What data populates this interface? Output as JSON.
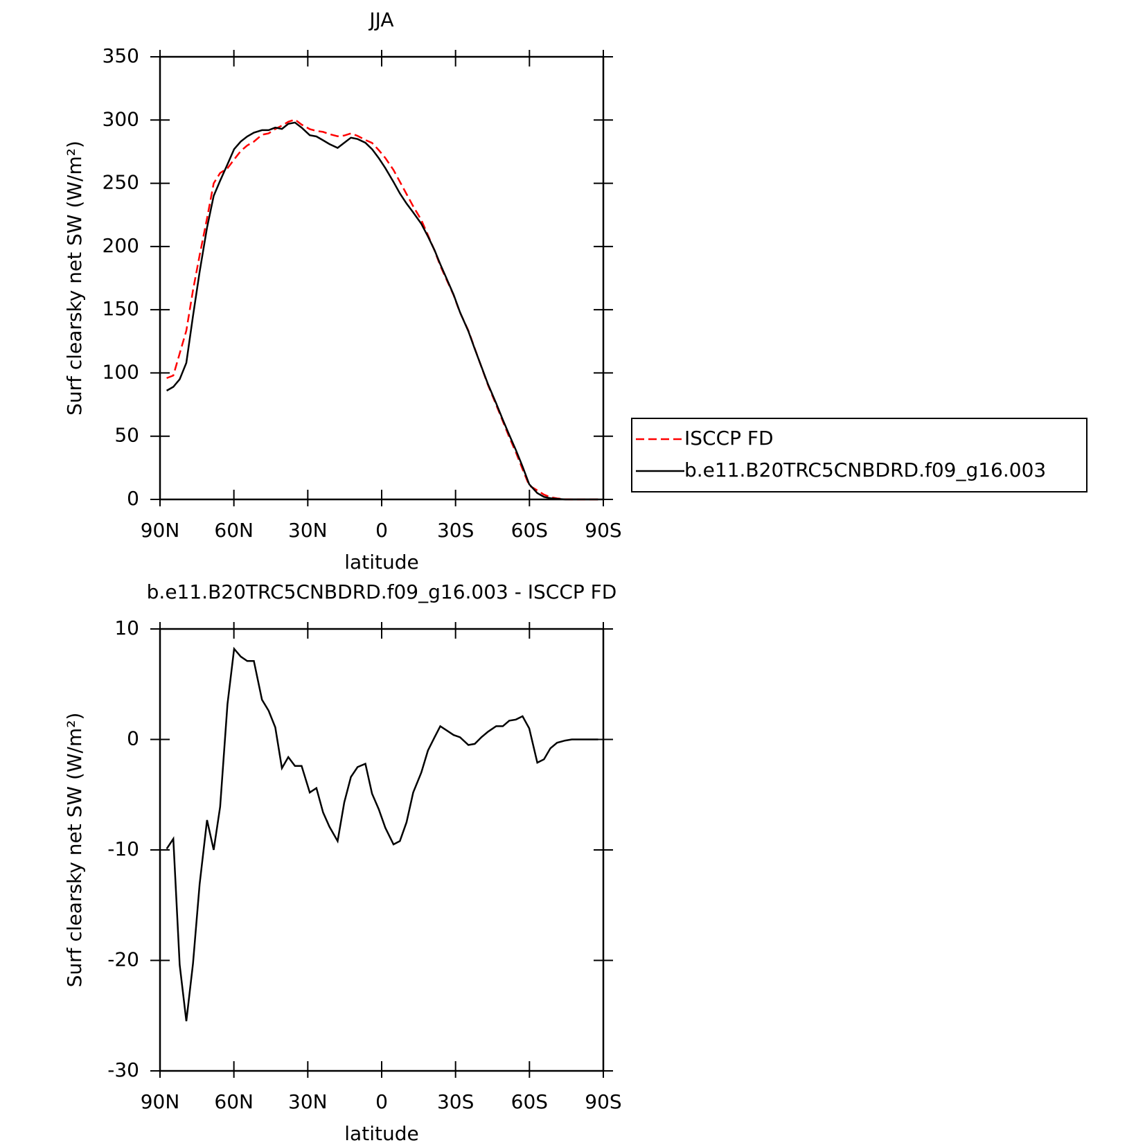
{
  "chart_data": [
    {
      "type": "line",
      "title": "JJA",
      "x_label": "latitude",
      "y_label": "Surf clearsky net SW (W/m²)",
      "x": [
        87.3,
        84.6,
        82.0,
        79.3,
        76.6,
        73.9,
        70.9,
        68.2,
        65.6,
        62.6,
        59.9,
        57.2,
        54.6,
        51.9,
        48.6,
        45.9,
        43.2,
        40.5,
        37.9,
        35.2,
        32.5,
        29.2,
        26.5,
        23.8,
        21.2,
        17.9,
        15.2,
        12.5,
        9.8,
        6.6,
        3.9,
        1.2,
        -1.5,
        -4.8,
        -7.4,
        -10.1,
        -12.8,
        -16.1,
        -18.8,
        -21.5,
        -23.8,
        -26.5,
        -29.2,
        -31.8,
        -35.2,
        -37.8,
        -40.5,
        -43.2,
        -46.5,
        -49.2,
        -51.8,
        -54.5,
        -57.2,
        -59.9,
        -63.2,
        -65.9,
        -68.5,
        -71.2,
        -74.5,
        -77.2,
        -79.9,
        -82.6,
        -85.2,
        -87.9
      ],
      "series": [
        {
          "name": "ISCCP FD",
          "color": "#ff0000",
          "dash": "dashed",
          "values": [
            95.9,
            98,
            115.4,
            133.5,
            165.3,
            193.1,
            222.3,
            250,
            258.1,
            261.8,
            268.8,
            275.5,
            279.9,
            282.9,
            288.4,
            289.4,
            292.9,
            295.6,
            298.6,
            300.4,
            296.4,
            292.8,
            291.4,
            290.6,
            288.9,
            287.2,
            287.7,
            289.4,
            287.5,
            284.2,
            281.9,
            276.3,
            270,
            260.5,
            251.2,
            241.5,
            231.8,
            221,
            209,
            196.8,
            184.8,
            173.2,
            161.6,
            147.8,
            133.5,
            119.4,
            104.8,
            90.3,
            74.8,
            61.8,
            49.3,
            37.2,
            23.9,
            11,
            7.1,
            3.8,
            1.8,
            0.8,
            0.1,
            0,
            0,
            0,
            0,
            0
          ]
        },
        {
          "name": "b.e11.B20TRC5CNBDRD.f09_g16.003",
          "color": "#000000",
          "dash": "solid",
          "values": [
            86,
            89,
            95,
            108,
            145,
            180,
            215,
            240,
            252,
            265,
            277,
            283,
            287,
            290,
            292,
            292,
            294,
            293,
            297,
            298,
            294,
            288,
            287,
            284,
            281,
            278,
            282,
            286,
            285,
            282,
            277,
            270,
            262,
            251,
            242,
            234,
            227,
            218,
            208,
            197,
            186,
            174,
            162,
            148,
            133,
            119,
            105,
            91,
            76,
            63,
            51,
            39,
            26,
            12,
            5,
            2,
            1,
            0.5,
            0,
            0,
            0,
            0,
            0,
            0
          ]
        }
      ],
      "xlim": [
        90,
        -90
      ],
      "xticks": [
        {
          "value": 90,
          "label": "90N"
        },
        {
          "value": 60,
          "label": "60N"
        },
        {
          "value": 30,
          "label": "30N"
        },
        0,
        {
          "value": -30,
          "label": "30S"
        },
        {
          "value": -60,
          "label": "60S"
        },
        {
          "value": -90,
          "label": "90S"
        }
      ],
      "ylim": [
        0,
        350
      ],
      "yticks": [
        0,
        50,
        100,
        150,
        200,
        250,
        300,
        350
      ],
      "legend": "right-outside"
    },
    {
      "type": "line",
      "title": "b.e11.B20TRC5CNBDRD.f09_g16.003 - ISCCP FD",
      "x_label": "latitude",
      "y_label": "Surf clearsky net SW (W/m²)",
      "x": [
        87.3,
        84.6,
        82.0,
        79.3,
        76.6,
        73.9,
        70.9,
        68.2,
        65.6,
        62.6,
        59.9,
        57.2,
        54.6,
        51.9,
        48.6,
        45.9,
        43.2,
        40.5,
        37.9,
        35.2,
        32.5,
        29.2,
        26.5,
        23.8,
        21.2,
        17.9,
        15.2,
        12.5,
        9.8,
        6.6,
        3.9,
        1.2,
        -1.5,
        -4.8,
        -7.4,
        -10.1,
        -12.8,
        -16.1,
        -18.8,
        -21.5,
        -23.8,
        -26.5,
        -29.2,
        -31.8,
        -35.2,
        -37.8,
        -40.5,
        -43.2,
        -46.5,
        -49.2,
        -51.8,
        -54.5,
        -57.2,
        -59.9,
        -63.2,
        -65.9,
        -68.5,
        -71.2,
        -74.5,
        -77.2,
        -79.9,
        -82.6,
        -85.2,
        -87.9
      ],
      "series": [
        {
          "color": "#000000",
          "dash": "solid",
          "values": [
            -9.9,
            -9.0,
            -20.4,
            -25.5,
            -20.3,
            -13.1,
            -7.3,
            -10.0,
            -6.1,
            3.2,
            8.2,
            7.5,
            7.1,
            7.1,
            3.6,
            2.6,
            1.1,
            -2.6,
            -1.6,
            -2.4,
            -2.4,
            -4.8,
            -4.4,
            -6.6,
            -7.9,
            -9.2,
            -5.7,
            -3.4,
            -2.5,
            -2.2,
            -4.9,
            -6.3,
            -8.0,
            -9.5,
            -9.2,
            -7.5,
            -4.8,
            -3.0,
            -1.0,
            0.2,
            1.2,
            0.8,
            0.4,
            0.2,
            -0.5,
            -0.4,
            0.2,
            0.7,
            1.2,
            1.2,
            1.7,
            1.8,
            2.1,
            1.0,
            -2.1,
            -1.8,
            -0.8,
            -0.3,
            -0.1,
            0,
            0,
            0,
            0,
            0
          ]
        }
      ],
      "xlim": [
        90,
        -90
      ],
      "xticks": [
        {
          "value": 90,
          "label": "90N"
        },
        {
          "value": 60,
          "label": "60N"
        },
        {
          "value": 30,
          "label": "30N"
        },
        0,
        {
          "value": -30,
          "label": "30S"
        },
        {
          "value": -60,
          "label": "60S"
        },
        {
          "value": -90,
          "label": "90S"
        }
      ],
      "ylim": [
        -30,
        10
      ],
      "yticks": [
        -30,
        -20,
        -10,
        0,
        10
      ]
    }
  ]
}
